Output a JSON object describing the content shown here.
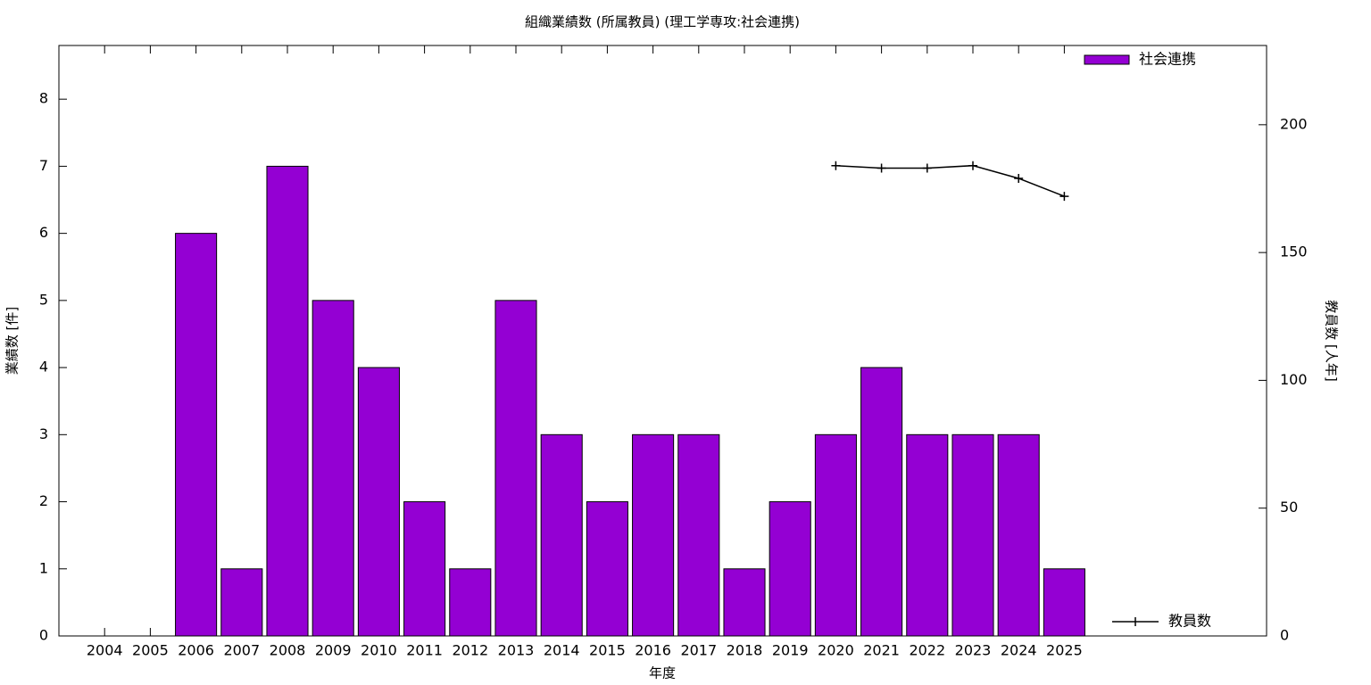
{
  "chart_data": {
    "type": "bar",
    "title": "組織業績数 (所属教員) (理工学専攻:社会連携)",
    "x_label": "年度",
    "y_label": "業績数 [件]",
    "y2_label": "教員数 [人年]",
    "categories": [
      "2004",
      "2005",
      "2006",
      "2007",
      "2008",
      "2009",
      "2010",
      "2011",
      "2012",
      "2013",
      "2014",
      "2015",
      "2016",
      "2017",
      "2018",
      "2019",
      "2020",
      "2021",
      "2022",
      "2023",
      "2024",
      "2025"
    ],
    "series": [
      {
        "name": "社会連携",
        "type": "bar",
        "color": "#9400d3",
        "values": [
          0,
          0,
          6,
          1,
          7,
          5,
          4,
          2,
          1,
          5,
          3,
          2,
          3,
          3,
          1,
          2,
          3,
          4,
          3,
          3,
          3,
          1
        ]
      },
      {
        "name": "教員数",
        "type": "line",
        "axis": "y2",
        "color": "#000000",
        "values": [
          null,
          null,
          null,
          null,
          null,
          null,
          null,
          null,
          null,
          null,
          null,
          null,
          null,
          null,
          null,
          null,
          184,
          183,
          183,
          184,
          179,
          172
        ]
      }
    ],
    "ylim": [
      0,
      8.8
    ],
    "yticks": [
      0,
      1,
      2,
      3,
      4,
      5,
      6,
      7,
      8
    ],
    "y2lim": [
      0,
      231
    ],
    "y2ticks": [
      0,
      50,
      100,
      150,
      200
    ],
    "grid": false
  }
}
